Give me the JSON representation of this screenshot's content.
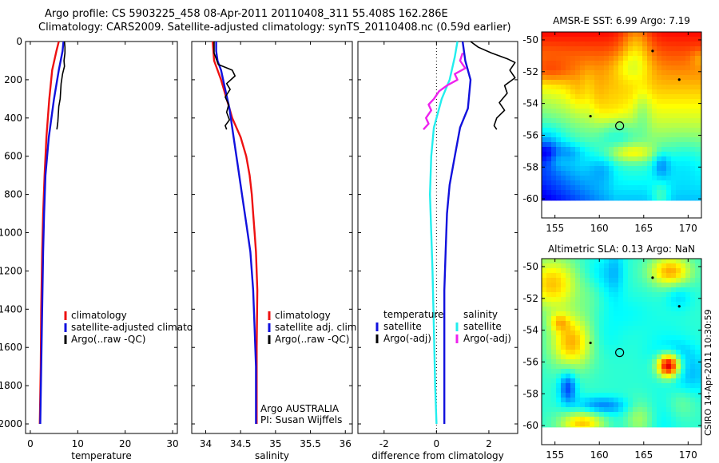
{
  "header": {
    "line1": "Argo profile: CS 5903225_458 08-Apr-2011 20110408_311 55.408S 162.286E",
    "line2": "Climatology: CARS2009. Satellite-adjusted climatology: synTS_20110408.nc (0.59d earlier)"
  },
  "stamp": "CSIRO 14-Apr-2011 10:30:59",
  "colors": {
    "climatology": "#ee1111",
    "satellite": "#1111dd",
    "argo": "#000000",
    "cyan": "#22eeee",
    "magenta": "#ee22ee"
  },
  "chart_data": [
    {
      "type": "line",
      "id": "temperature",
      "xlabel": "temperature",
      "xlim": [
        -1,
        31
      ],
      "ylim": [
        2050,
        0
      ],
      "xticks": [
        0,
        10,
        20,
        30
      ],
      "yticks": [
        0,
        200,
        400,
        600,
        800,
        1000,
        1200,
        1400,
        1600,
        1800,
        2000
      ],
      "legend": [
        "climatology",
        "satellite-adjusted climatolog",
        "Argo(..raw -QC)"
      ],
      "series": [
        {
          "name": "climatology",
          "color": "climatology",
          "points": [
            [
              6.0,
              0
            ],
            [
              5.5,
              50
            ],
            [
              4.6,
              150
            ],
            [
              4.0,
              300
            ],
            [
              3.4,
              500
            ],
            [
              3.0,
              700
            ],
            [
              2.7,
              900
            ],
            [
              2.5,
              1100
            ],
            [
              2.3,
              1400
            ],
            [
              2.2,
              1700
            ],
            [
              2.0,
              2000
            ]
          ]
        },
        {
          "name": "satellite-adjusted climatolog",
          "color": "satellite",
          "points": [
            [
              7.0,
              0
            ],
            [
              6.8,
              50
            ],
            [
              6.0,
              150
            ],
            [
              5.0,
              300
            ],
            [
              3.9,
              500
            ],
            [
              3.2,
              700
            ],
            [
              2.9,
              900
            ],
            [
              2.7,
              1100
            ],
            [
              2.5,
              1400
            ],
            [
              2.3,
              1700
            ],
            [
              2.1,
              2000
            ]
          ]
        },
        {
          "name": "Argo(..raw -QC)",
          "color": "argo",
          "points": [
            [
              7.2,
              0
            ],
            [
              7.3,
              30
            ],
            [
              7.3,
              60
            ],
            [
              7.1,
              100
            ],
            [
              7.2,
              130
            ],
            [
              6.8,
              170
            ],
            [
              6.5,
              220
            ],
            [
              6.4,
              260
            ],
            [
              6.3,
              300
            ],
            [
              6.0,
              340
            ],
            [
              5.9,
              380
            ],
            [
              5.8,
              420
            ],
            [
              5.6,
              460
            ]
          ]
        }
      ]
    },
    {
      "type": "line",
      "id": "salinity",
      "xlabel": "salinity",
      "xlim": [
        33.8,
        36.1
      ],
      "ylim": [
        2050,
        0
      ],
      "xticks": [
        34,
        34.5,
        35,
        35.5,
        36
      ],
      "legend": [
        "climatology",
        "satellite adj. clim.",
        "Argo(..raw -QC)"
      ],
      "annotations": [
        "Argo AUSTRALIA",
        "PI: Susan Wijffels"
      ],
      "series": [
        {
          "name": "climatology",
          "color": "climatology",
          "points": [
            [
              34.1,
              0
            ],
            [
              34.12,
              100
            ],
            [
              34.22,
              200
            ],
            [
              34.3,
              300
            ],
            [
              34.38,
              400
            ],
            [
              34.5,
              500
            ],
            [
              34.58,
              600
            ],
            [
              34.63,
              700
            ],
            [
              34.66,
              800
            ],
            [
              34.68,
              900
            ],
            [
              34.7,
              1000
            ],
            [
              34.72,
              1100
            ],
            [
              34.74,
              1300
            ],
            [
              34.73,
              1600
            ],
            [
              34.73,
              2000
            ]
          ]
        },
        {
          "name": "satellite adj. clim.",
          "color": "satellite",
          "points": [
            [
              34.15,
              0
            ],
            [
              34.15,
              50
            ],
            [
              34.17,
              100
            ],
            [
              34.22,
              150
            ],
            [
              34.28,
              250
            ],
            [
              34.34,
              350
            ],
            [
              34.4,
              500
            ],
            [
              34.46,
              650
            ],
            [
              34.52,
              800
            ],
            [
              34.58,
              950
            ],
            [
              34.64,
              1100
            ],
            [
              34.68,
              1300
            ],
            [
              34.7,
              1500
            ],
            [
              34.72,
              1700
            ],
            [
              34.72,
              2000
            ]
          ]
        },
        {
          "name": "Argo(..raw -QC)",
          "color": "argo",
          "points": [
            [
              34.12,
              0
            ],
            [
              34.12,
              60
            ],
            [
              34.18,
              120
            ],
            [
              34.38,
              150
            ],
            [
              34.42,
              180
            ],
            [
              34.3,
              220
            ],
            [
              34.35,
              250
            ],
            [
              34.28,
              290
            ],
            [
              34.33,
              330
            ],
            [
              34.3,
              370
            ],
            [
              34.34,
              410
            ],
            [
              34.28,
              440
            ],
            [
              34.3,
              460
            ]
          ]
        }
      ]
    },
    {
      "type": "line",
      "id": "difference",
      "xlabel": "difference from climatology",
      "xlim": [
        -3,
        3.1
      ],
      "ylim": [
        2050,
        0
      ],
      "xticks": [
        -2,
        0,
        2
      ],
      "zero_line": true,
      "legend_groups": [
        {
          "title": "temperature",
          "items": [
            "satellite",
            "Argo(-adj)"
          ]
        },
        {
          "title": "salinity",
          "items": [
            "satellite",
            "Argo(-adj)"
          ]
        }
      ],
      "series": [
        {
          "name": "satellite",
          "group": "temperature",
          "color": "satellite",
          "points": [
            [
              1.0,
              0
            ],
            [
              1.1,
              100
            ],
            [
              1.3,
              200
            ],
            [
              1.2,
              350
            ],
            [
              0.9,
              450
            ],
            [
              0.7,
              600
            ],
            [
              0.5,
              750
            ],
            [
              0.4,
              900
            ],
            [
              0.35,
              1100
            ],
            [
              0.3,
              1300
            ],
            [
              0.3,
              1600
            ],
            [
              0.3,
              2000
            ]
          ]
        },
        {
          "name": "Argo(-adj)",
          "group": "temperature",
          "color": "argo",
          "points": [
            [
              1.3,
              0
            ],
            [
              1.6,
              30
            ],
            [
              2.1,
              60
            ],
            [
              2.7,
              90
            ],
            [
              3.0,
              110
            ],
            [
              2.8,
              150
            ],
            [
              3.0,
              190
            ],
            [
              2.6,
              230
            ],
            [
              2.7,
              270
            ],
            [
              2.4,
              320
            ],
            [
              2.6,
              360
            ],
            [
              2.3,
              400
            ],
            [
              2.2,
              440
            ],
            [
              2.3,
              460
            ]
          ]
        },
        {
          "name": "satellite",
          "group": "salinity",
          "color": "cyan",
          "points": [
            [
              0.8,
              0
            ],
            [
              0.7,
              80
            ],
            [
              0.5,
              200
            ],
            [
              0.2,
              300
            ],
            [
              0.0,
              400
            ],
            [
              -0.1,
              450
            ],
            [
              -0.2,
              600
            ],
            [
              -0.25,
              800
            ],
            [
              -0.2,
              1000
            ],
            [
              -0.15,
              1200
            ],
            [
              -0.1,
              1500
            ],
            [
              -0.05,
              1800
            ],
            [
              0.0,
              2000
            ]
          ]
        },
        {
          "name": "Argo(-adj)",
          "group": "salinity",
          "color": "magenta",
          "points": [
            [
              1.0,
              60
            ],
            [
              0.9,
              100
            ],
            [
              1.1,
              140
            ],
            [
              0.7,
              170
            ],
            [
              0.8,
              200
            ],
            [
              0.4,
              230
            ],
            [
              0.1,
              260
            ],
            [
              -0.1,
              300
            ],
            [
              -0.3,
              330
            ],
            [
              -0.2,
              360
            ],
            [
              -0.4,
              400
            ],
            [
              -0.3,
              430
            ],
            [
              -0.5,
              460
            ]
          ]
        }
      ]
    },
    {
      "type": "heatmap",
      "id": "sst",
      "title": "AMSR-E SST: 6.99 Argo: 7.19",
      "xlim": [
        153.5,
        171.5
      ],
      "ylim": [
        -61.2,
        -49.5
      ],
      "xticks": [
        155,
        160,
        165,
        170
      ],
      "yticks": [
        -50,
        -52,
        -54,
        -56,
        -58,
        -60
      ],
      "data_ylim": [
        -60.1,
        -49.5
      ],
      "argo_position": [
        162.286,
        -55.408
      ],
      "seed": 11
    },
    {
      "type": "heatmap",
      "id": "sla",
      "title": "Altimetric SLA: 0.13 Argo: NaN",
      "xlim": [
        153.5,
        171.5
      ],
      "ylim": [
        -61.2,
        -49.5
      ],
      "xticks": [
        155,
        160,
        165,
        170
      ],
      "yticks": [
        -50,
        -52,
        -54,
        -56,
        -58,
        -60
      ],
      "data_ylim": [
        -60.1,
        -49.5
      ],
      "argo_position": [
        162.286,
        -55.408
      ],
      "seed": 29
    }
  ]
}
